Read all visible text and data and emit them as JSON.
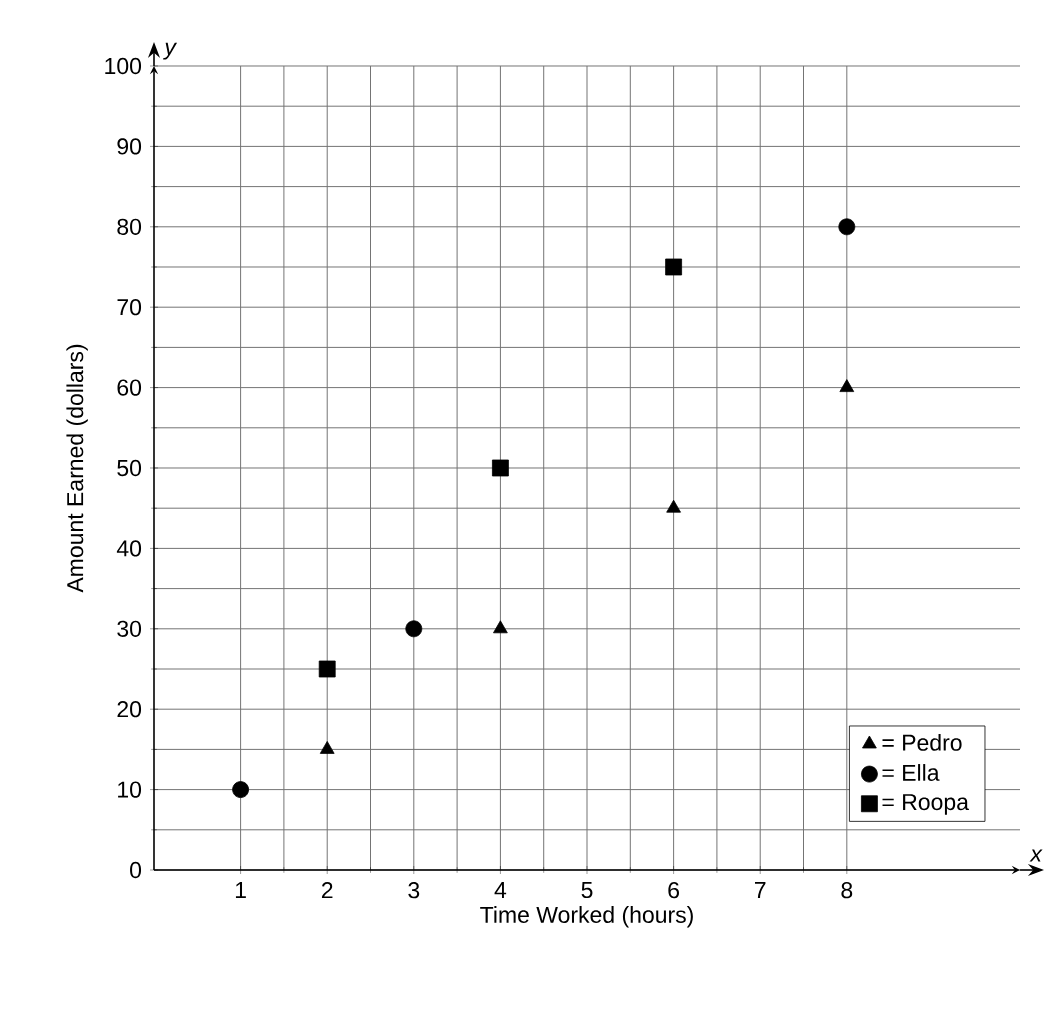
{
  "chart_data": {
    "type": "scatter",
    "xlabel": "Time Worked (hours)",
    "ylabel": "Amount Earned (dollars)",
    "annotations": [
      "x",
      "y"
    ],
    "xlim": [
      0,
      10
    ],
    "ylim": [
      0,
      100
    ],
    "xticks": [
      1,
      2,
      3,
      4,
      5,
      6,
      7,
      8
    ],
    "yticks": [
      0,
      10,
      20,
      30,
      40,
      50,
      60,
      70,
      80,
      90,
      100
    ],
    "grid": true,
    "legend": "bottom right",
    "series": [
      {
        "name": "= Pedro",
        "color": "#000000",
        "marker": "triangle",
        "x": [
          2,
          4,
          6,
          8
        ],
        "values": [
          15,
          30,
          45,
          60
        ]
      },
      {
        "name": "= Ella",
        "color": "#000000",
        "marker": "circle",
        "x": [
          1,
          3,
          8
        ],
        "values": [
          10,
          30,
          80
        ]
      },
      {
        "name": "= Roopa",
        "color": "#000000",
        "marker": "square",
        "x": [
          2,
          4,
          6
        ],
        "values": [
          25,
          50,
          75
        ]
      }
    ]
  }
}
